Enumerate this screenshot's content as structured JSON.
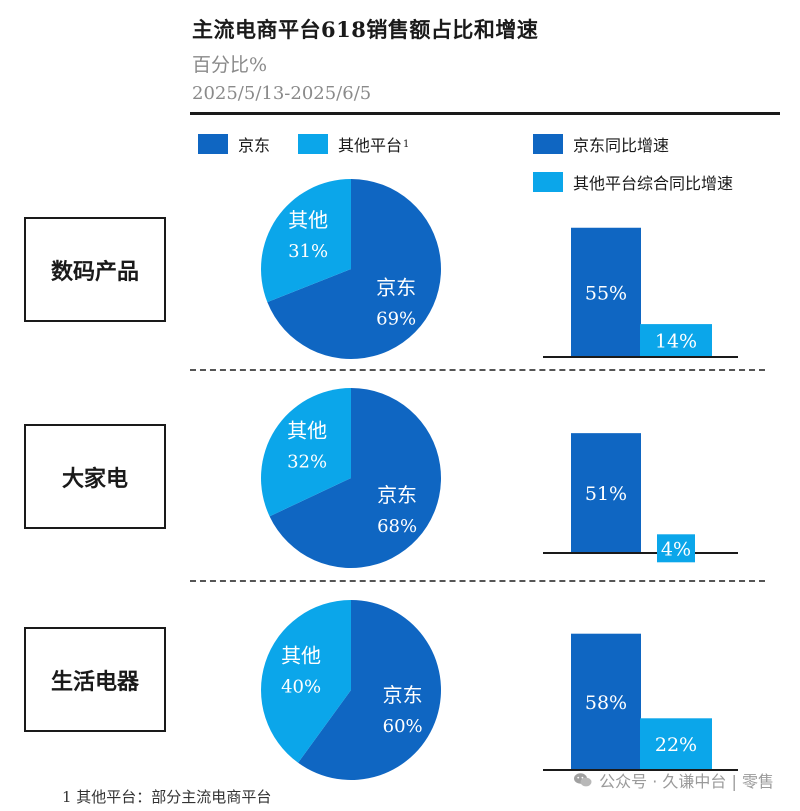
{
  "header": {
    "title": "主流电商平台618销售额占比和增速",
    "subtitle": "百分比%",
    "date_range": "2025/5/13-2025/6/5"
  },
  "legend": {
    "share": [
      {
        "label": "京东",
        "color": "#0f66c2"
      },
      {
        "label": "其他平台",
        "sup": "1",
        "color": "#0ba6ea"
      }
    ],
    "growth": [
      {
        "label": "京东同比增速",
        "color": "#0f66c2"
      },
      {
        "label": "其他平台综合同比增速",
        "color": "#0ba6ea"
      }
    ]
  },
  "chart_data": [
    {
      "type": "pie",
      "category": "数码产品",
      "title": "数码产品",
      "slices": [
        {
          "label": "京东",
          "value": 69,
          "text": "69%",
          "color": "#0f66c2"
        },
        {
          "label": "其他",
          "value": 31,
          "text": "31%",
          "color": "#0ba6ea"
        }
      ]
    },
    {
      "type": "bar",
      "category": "数码产品",
      "categories": [
        "京东同比增速",
        "其他平台综合同比增速"
      ],
      "values": [
        55,
        14
      ],
      "labels": [
        "55%",
        "14%"
      ],
      "colors": [
        "#0f66c2",
        "#0ba6ea"
      ]
    },
    {
      "type": "pie",
      "category": "大家电",
      "title": "大家电",
      "slices": [
        {
          "label": "京东",
          "value": 68,
          "text": "68%",
          "color": "#0f66c2"
        },
        {
          "label": "其他",
          "value": 32,
          "text": "32%",
          "color": "#0ba6ea"
        }
      ]
    },
    {
      "type": "bar",
      "category": "大家电",
      "categories": [
        "京东同比增速",
        "其他平台综合同比增速"
      ],
      "values": [
        51,
        4
      ],
      "labels": [
        "51%",
        "4%"
      ],
      "colors": [
        "#0f66c2",
        "#0ba6ea"
      ]
    },
    {
      "type": "pie",
      "category": "生活电器",
      "title": "生活电器",
      "slices": [
        {
          "label": "京东",
          "value": 60,
          "text": "60%",
          "color": "#0f66c2"
        },
        {
          "label": "其他",
          "value": 40,
          "text": "40%",
          "color": "#0ba6ea"
        }
      ]
    },
    {
      "type": "bar",
      "category": "生活电器",
      "categories": [
        "京东同比增速",
        "其他平台综合同比增速"
      ],
      "values": [
        58,
        22
      ],
      "labels": [
        "58%",
        "22%"
      ],
      "colors": [
        "#0f66c2",
        "#0ba6ea"
      ]
    }
  ],
  "footnote": "1 其他平台：部分主流电商平台",
  "watermark": "公众号 · 久谦中台 | 零售",
  "watermark_icon": "wechat-icon"
}
